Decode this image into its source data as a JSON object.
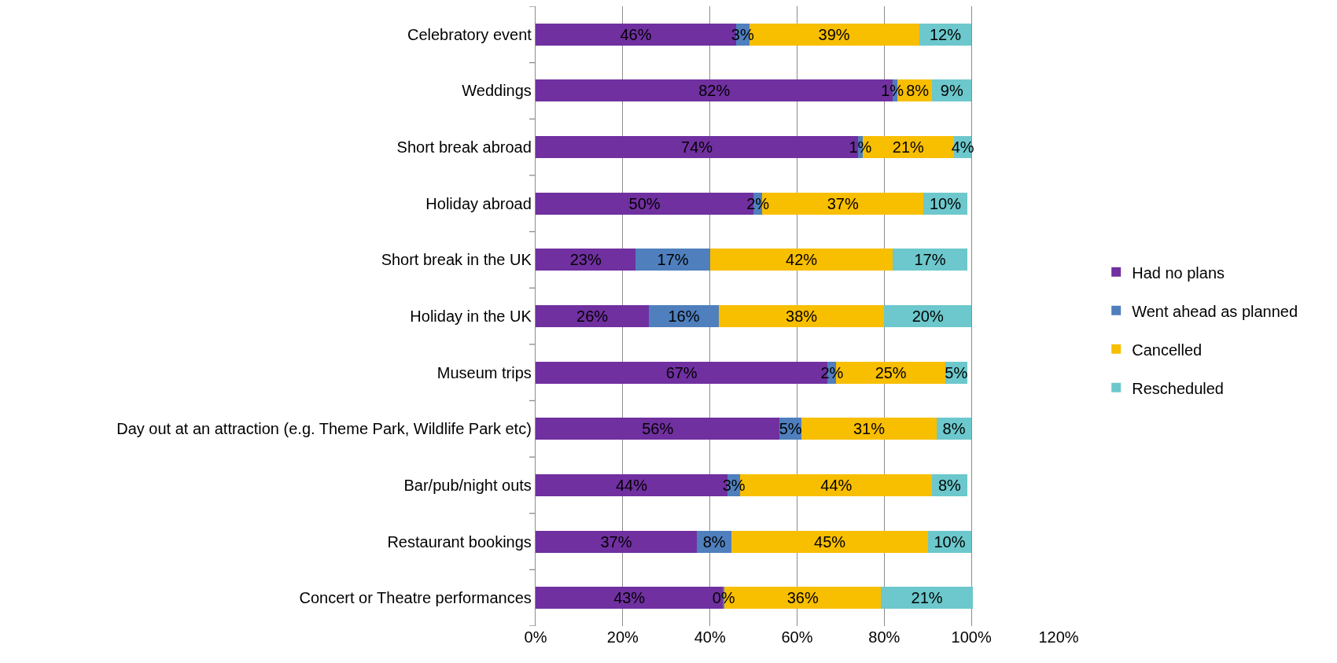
{
  "chart_data": {
    "type": "bar",
    "orientation": "horizontal",
    "stacked": true,
    "categories": [
      "Celebratory event",
      "Weddings",
      "Short break abroad",
      "Holiday abroad",
      "Short break in the UK",
      "Holiday in the UK",
      "Museum trips",
      "Day out at an attraction (e.g. Theme Park, Wildlife Park etc)",
      "Bar/pub/night outs",
      "Restaurant bookings",
      "Concert or Theatre performances"
    ],
    "series": [
      {
        "name": "Had no plans",
        "color": "#7030a0",
        "values": [
          46,
          82,
          74,
          50,
          23,
          26,
          67,
          56,
          44,
          37,
          43
        ],
        "value_labels": [
          "46%",
          "82%",
          "74%",
          "50%",
          "23%",
          "26%",
          "67%",
          "56%",
          "44%",
          "37%",
          "43%"
        ]
      },
      {
        "name": "Went ahead as planned",
        "color": "#4f7fbd",
        "values": [
          3,
          1,
          1,
          2,
          17,
          16,
          2,
          5,
          3,
          8,
          0.3
        ],
        "value_labels": [
          "3%",
          "1%",
          "1%",
          "2%",
          "17%",
          "16%",
          "2%",
          "5%",
          "3%",
          "8%",
          "0%"
        ]
      },
      {
        "name": "Cancelled",
        "color": "#f8be00",
        "values": [
          39,
          8,
          21,
          37,
          42,
          38,
          25,
          31,
          44,
          45,
          36
        ],
        "value_labels": [
          "39%",
          "8%",
          "21%",
          "37%",
          "42%",
          "38%",
          "25%",
          "31%",
          "44%",
          "45%",
          "36%"
        ]
      },
      {
        "name": "Rescheduled",
        "color": "#6cc8cc",
        "values": [
          12,
          9,
          4,
          10,
          17,
          20,
          5,
          8,
          8,
          10,
          21
        ],
        "value_labels": [
          "12%",
          "9%",
          "4%",
          "10%",
          "17%",
          "20%",
          "5%",
          "8%",
          "8%",
          "10%",
          "21%"
        ]
      }
    ],
    "xlim": [
      0,
      120
    ],
    "xticks": [
      {
        "value": 0,
        "label": "0%"
      },
      {
        "value": 20,
        "label": "20%"
      },
      {
        "value": 40,
        "label": "40%"
      },
      {
        "value": 60,
        "label": "60%"
      },
      {
        "value": 80,
        "label": "80%"
      },
      {
        "value": 100,
        "label": "100%"
      },
      {
        "value": 120,
        "label": "120%"
      }
    ],
    "grid": "x",
    "legend": "right"
  }
}
